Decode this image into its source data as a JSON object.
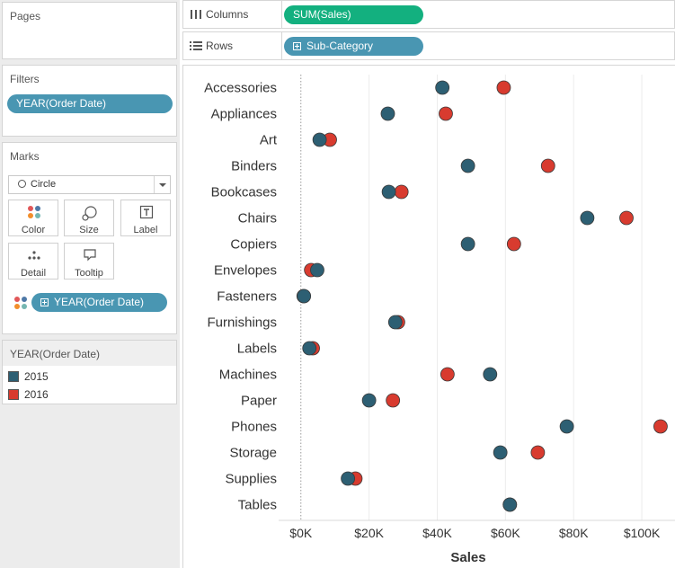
{
  "pages": {
    "title": "Pages"
  },
  "filters": {
    "title": "Filters",
    "pill": "YEAR(Order Date)"
  },
  "marks": {
    "title": "Marks",
    "mark_type": "Circle",
    "buttons": {
      "color": "Color",
      "size": "Size",
      "label": "Label",
      "detail": "Detail",
      "tooltip": "Tooltip"
    },
    "color_pill": "YEAR(Order Date)"
  },
  "legend": {
    "title": "YEAR(Order Date)",
    "items": [
      {
        "label": "2015",
        "color": "#2d5f73"
      },
      {
        "label": "2016",
        "color": "#d83b2f"
      }
    ]
  },
  "shelves": {
    "columns": {
      "label": "Columns",
      "pill": "SUM(Sales)"
    },
    "rows": {
      "label": "Rows",
      "pill": "Sub-Category"
    }
  },
  "chart_data": {
    "type": "scatter",
    "xlabel": "Sales",
    "xlim": [
      -6000,
      110000
    ],
    "x_ticks": [
      0,
      20000,
      40000,
      60000,
      80000,
      100000
    ],
    "x_tick_labels": [
      "$0K",
      "$20K",
      "$40K",
      "$60K",
      "$80K",
      "$100K"
    ],
    "categories": [
      "Accessories",
      "Appliances",
      "Art",
      "Binders",
      "Bookcases",
      "Chairs",
      "Copiers",
      "Envelopes",
      "Fasteners",
      "Furnishings",
      "Labels",
      "Machines",
      "Paper",
      "Phones",
      "Storage",
      "Supplies",
      "Tables"
    ],
    "series": [
      {
        "name": "2015",
        "color": "#2d5f73",
        "values": [
          41500,
          25500,
          5500,
          49000,
          25800,
          84000,
          49000,
          4800,
          900,
          27700,
          2500,
          55500,
          20000,
          78000,
          58500,
          13800,
          61300
        ]
      },
      {
        "name": "2016",
        "color": "#d83b2f",
        "values": [
          59500,
          42500,
          8500,
          72500,
          29500,
          95500,
          62500,
          3000,
          800,
          28500,
          3500,
          43000,
          27000,
          105500,
          69500,
          16000,
          61300
        ]
      }
    ],
    "grid": true,
    "legend": "left-panel"
  }
}
